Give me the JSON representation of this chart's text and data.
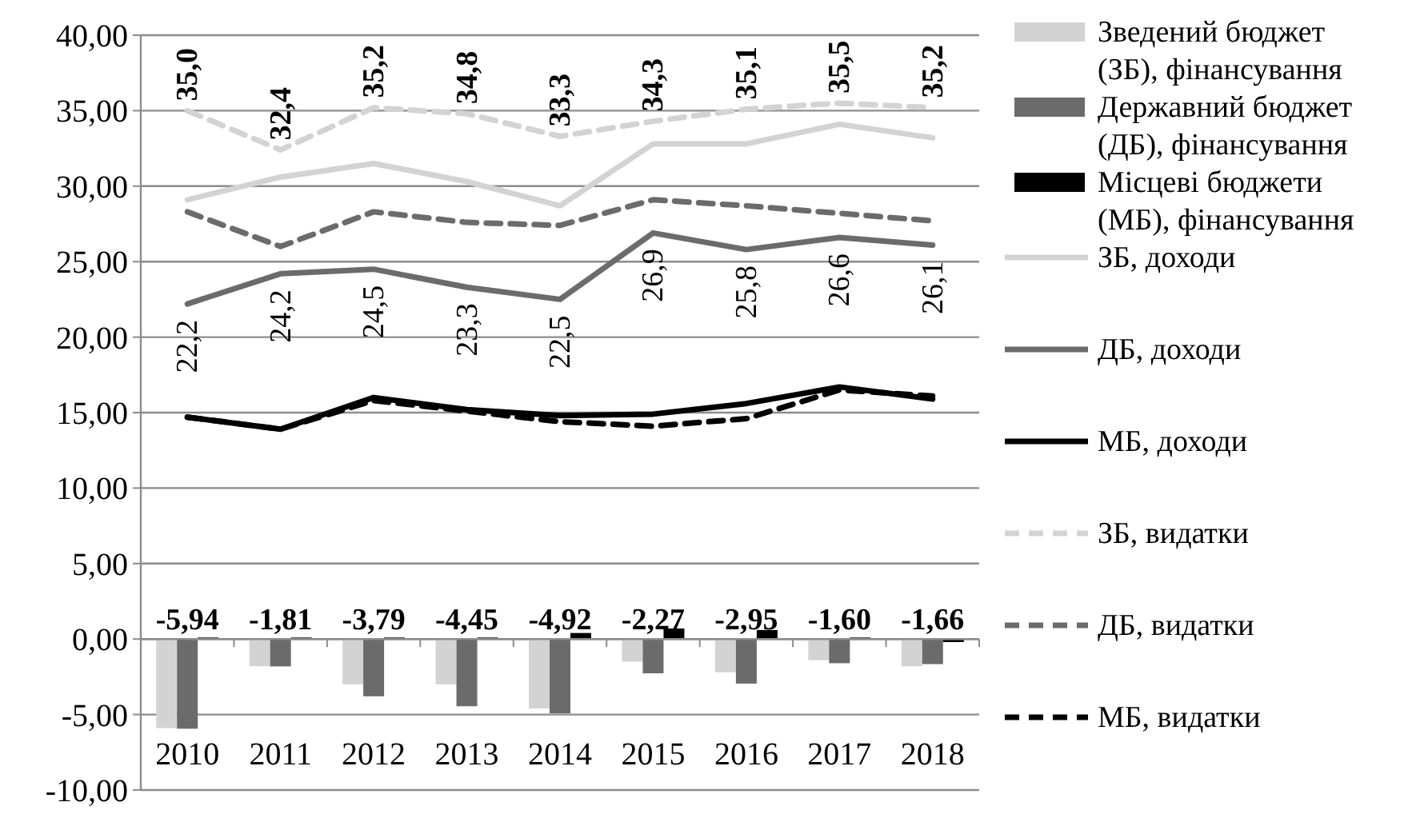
{
  "chart_data": {
    "type": "bar",
    "categories": [
      "2010",
      "2011",
      "2012",
      "2013",
      "2014",
      "2015",
      "2016",
      "2017",
      "2018"
    ],
    "ylim": [
      -10,
      40
    ],
    "yticks": [
      {
        "value": -10,
        "label": "-10,00"
      },
      {
        "value": -5,
        "label": "-5,00"
      },
      {
        "value": 0,
        "label": "0,00"
      },
      {
        "value": 5,
        "label": "5,00"
      },
      {
        "value": 10,
        "label": "10,00"
      },
      {
        "value": 15,
        "label": "15,00"
      },
      {
        "value": 20,
        "label": "20,00"
      },
      {
        "value": 25,
        "label": "25,00"
      },
      {
        "value": 30,
        "label": "30,00"
      },
      {
        "value": 35,
        "label": "35,00"
      },
      {
        "value": 40,
        "label": "40,00"
      }
    ],
    "grid": "y",
    "legend": "right",
    "series": [
      {
        "name": "Зведений бюджет (ЗБ), фінансування",
        "color": "#d3d3d3",
        "values": [
          -5.9,
          -1.8,
          -3.0,
          -3.0,
          -4.6,
          -1.5,
          -2.2,
          -1.4,
          -1.8
        ]
      },
      {
        "name": "Державний бюджет (ДБ), фінансування",
        "color": "#6b6b6b",
        "values": [
          -5.94,
          -1.81,
          -3.79,
          -4.45,
          -4.92,
          -2.27,
          -2.95,
          -1.6,
          -1.66
        ],
        "value_labels": [
          "-5,94",
          "-1,81",
          "-3,79",
          "-4,45",
          "-4,92",
          "-2,27",
          "-2,95",
          "-1,60",
          "-1,66"
        ]
      },
      {
        "name": "Місцеві бюджети (МБ), фінансування",
        "color": "#000000",
        "values": [
          0.1,
          0.1,
          0.1,
          0.1,
          0.4,
          0.7,
          0.6,
          0.1,
          -0.2
        ]
      },
      {
        "name": "ЗБ, доходи",
        "type": "line",
        "color": "#d3d3d3",
        "line_style": "solid",
        "values": [
          29.1,
          30.6,
          31.5,
          30.3,
          28.7,
          32.8,
          32.8,
          34.1,
          33.2
        ]
      },
      {
        "name": "ДБ, доходи",
        "type": "line",
        "color": "#6b6b6b",
        "line_style": "solid",
        "values": [
          22.2,
          24.2,
          24.5,
          23.3,
          22.5,
          26.9,
          25.8,
          26.6,
          26.1
        ],
        "value_labels": [
          "22,2",
          "24,2",
          "24,5",
          "23,3",
          "22,5",
          "26,9",
          "25,8",
          "26,6",
          "26,1"
        ]
      },
      {
        "name": "МБ, доходи",
        "type": "line",
        "color": "#000000",
        "line_style": "solid",
        "values": [
          14.7,
          13.9,
          16.0,
          15.2,
          14.8,
          14.9,
          15.6,
          16.7,
          15.9
        ]
      },
      {
        "name": "ЗБ, видатки",
        "type": "line",
        "color": "#d3d3d3",
        "line_style": "dashed",
        "values": [
          35.0,
          32.4,
          35.2,
          34.8,
          33.3,
          34.3,
          35.1,
          35.5,
          35.2
        ],
        "value_labels": [
          "35,0",
          "32,4",
          "35,2",
          "34,8",
          "33,3",
          "34,3",
          "35,1",
          "35,5",
          "35,2"
        ]
      },
      {
        "name": "ДБ, видатки",
        "type": "line",
        "color": "#6b6b6b",
        "line_style": "dashed",
        "values": [
          28.3,
          26.0,
          28.3,
          27.6,
          27.4,
          29.1,
          28.7,
          28.2,
          27.7
        ]
      },
      {
        "name": "МБ, видатки",
        "type": "line",
        "color": "#000000",
        "line_style": "dashed",
        "values": [
          14.7,
          13.9,
          15.8,
          15.1,
          14.4,
          14.1,
          14.6,
          16.5,
          16.1
        ]
      }
    ]
  }
}
